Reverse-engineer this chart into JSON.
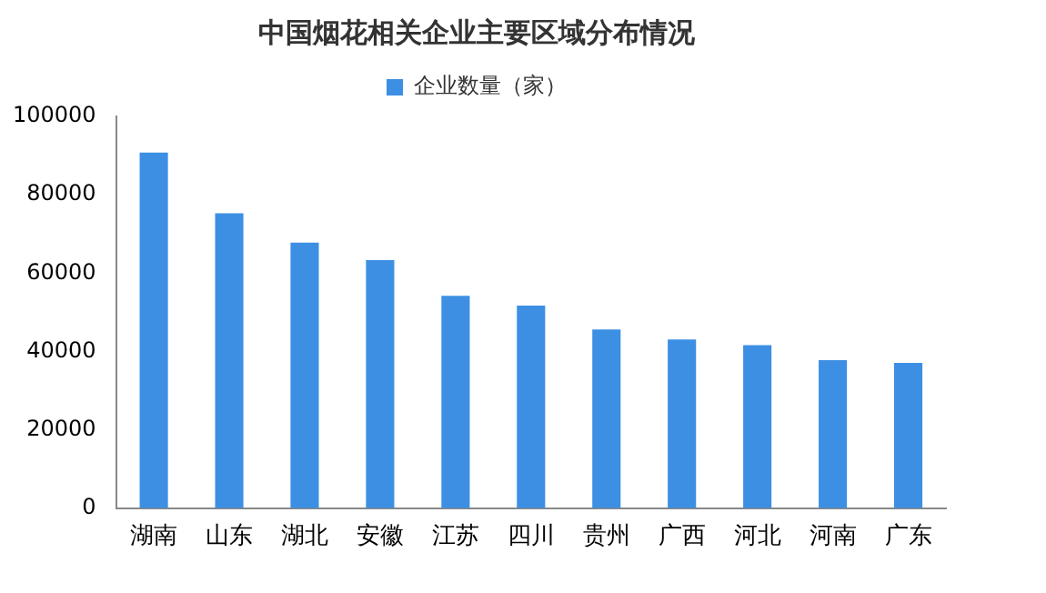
{
  "chart_data": {
    "type": "bar",
    "title": "中国烟花相关企业主要区域分布情况",
    "categories": [
      "湖南",
      "山东",
      "湖北",
      "安徽",
      "江苏",
      "四川",
      "贵州",
      "广西",
      "河北",
      "河南",
      "广东"
    ],
    "series": [
      {
        "name": "企业数量（家）",
        "color": "#3c8fe3",
        "values": [
          90800,
          75300,
          67800,
          63300,
          54200,
          51700,
          45600,
          43100,
          41600,
          37800,
          37100
        ]
      }
    ],
    "ylim": [
      0,
      100000
    ],
    "yticks": [
      0,
      20000,
      40000,
      60000,
      80000,
      100000
    ],
    "grid": false,
    "legend": "top"
  }
}
